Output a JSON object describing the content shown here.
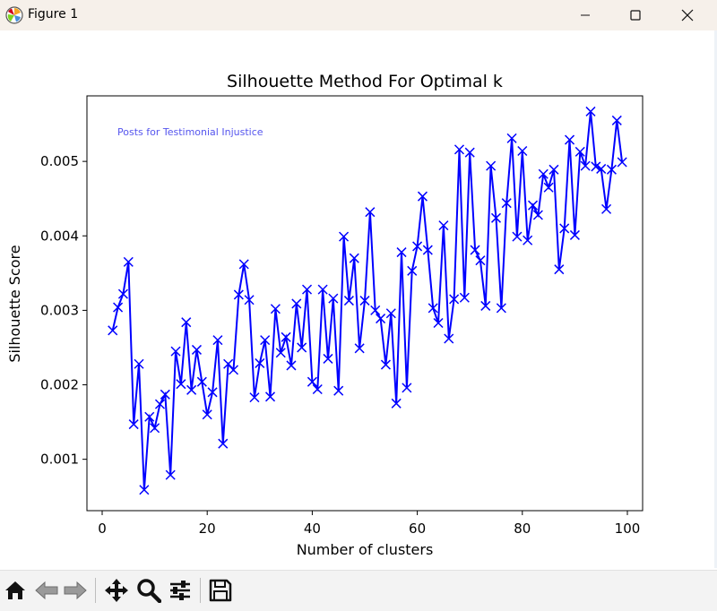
{
  "window": {
    "title": "Figure 1",
    "controls": [
      "minimize",
      "maximize",
      "close"
    ]
  },
  "toolbar": {
    "buttons": [
      "home-icon",
      "back-icon",
      "forward-icon",
      "pan-icon",
      "zoom-icon",
      "configure-subplots-icon",
      "save-icon"
    ]
  },
  "colors": {
    "series": "#0000ff",
    "annotation": "#5555ee"
  },
  "chart_data": {
    "type": "line",
    "title": "Silhouette Method For Optimal k",
    "xlabel": "Number of clusters",
    "ylabel": "Silhouette Score",
    "annotation": "Posts for Testimonial Injustice",
    "xlim": [
      -2.9,
      102.9
    ],
    "ylim": [
      0.00031,
      0.00588
    ],
    "xticks": [
      0,
      20,
      40,
      60,
      80,
      100
    ],
    "xtick_labels": [
      "0",
      "20",
      "40",
      "60",
      "80",
      "100"
    ],
    "yticks": [
      0.001,
      0.002,
      0.003,
      0.004,
      0.005
    ],
    "ytick_labels": [
      "0.001",
      "0.002",
      "0.003",
      "0.004",
      "0.005"
    ],
    "marker": "x",
    "series": [
      {
        "x": [
          2,
          3,
          4,
          5,
          6,
          7,
          8,
          9,
          10,
          11,
          12,
          13,
          14,
          15,
          16,
          17,
          18,
          19,
          20,
          21,
          22,
          23,
          24,
          25,
          26,
          27,
          28,
          29,
          30,
          31,
          32,
          33,
          34,
          35,
          36,
          37,
          38,
          39,
          40,
          41,
          42,
          43,
          44,
          45,
          46,
          47,
          48,
          49,
          50,
          51,
          52,
          53,
          54,
          55,
          56,
          57,
          58,
          59,
          60,
          61,
          62,
          63,
          64,
          65,
          66,
          67,
          68,
          69,
          70,
          71,
          72,
          73,
          74,
          75,
          76,
          77,
          78,
          79,
          80,
          81,
          82,
          83,
          84,
          85,
          86,
          87,
          88,
          89,
          90,
          91,
          92,
          93,
          94,
          95,
          96,
          97,
          98,
          99
        ],
        "y": [
          0.00273,
          0.00304,
          0.00322,
          0.00365,
          0.00147,
          0.00228,
          0.00059,
          0.00157,
          0.00142,
          0.00174,
          0.00187,
          0.00079,
          0.00245,
          0.00201,
          0.00284,
          0.00193,
          0.00247,
          0.00204,
          0.0016,
          0.0019,
          0.0026,
          0.00121,
          0.00228,
          0.0022,
          0.00321,
          0.00362,
          0.00314,
          0.00183,
          0.00229,
          0.0026,
          0.00184,
          0.00302,
          0.00243,
          0.00264,
          0.00226,
          0.00309,
          0.0025,
          0.00328,
          0.00204,
          0.00194,
          0.00328,
          0.00235,
          0.00316,
          0.00192,
          0.00399,
          0.00313,
          0.0037,
          0.00249,
          0.00313,
          0.00432,
          0.003,
          0.00289,
          0.00227,
          0.00296,
          0.00175,
          0.00378,
          0.00196,
          0.00353,
          0.00386,
          0.00453,
          0.00381,
          0.00303,
          0.00283,
          0.00414,
          0.00262,
          0.00315,
          0.00516,
          0.00317,
          0.00512,
          0.00381,
          0.00367,
          0.00306,
          0.00494,
          0.00424,
          0.00303,
          0.00444,
          0.00531,
          0.00399,
          0.00514,
          0.00394,
          0.00441,
          0.00428,
          0.00483,
          0.00465,
          0.00489,
          0.00355,
          0.0041,
          0.00529,
          0.00401,
          0.00513,
          0.00494,
          0.00567,
          0.00493,
          0.0049,
          0.00436,
          0.00489,
          0.00555,
          0.00499
        ]
      }
    ]
  }
}
